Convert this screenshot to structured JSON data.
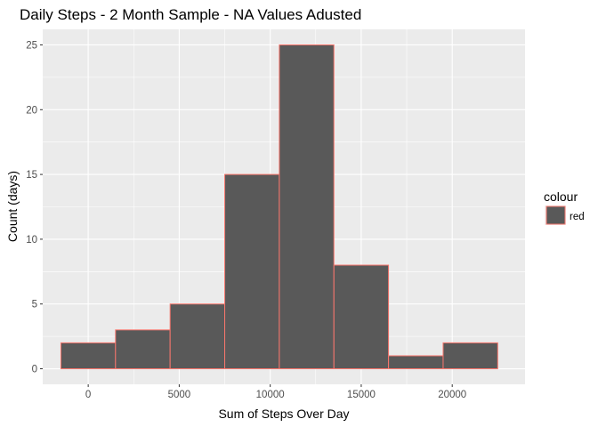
{
  "chart_data": {
    "type": "bar",
    "title": "Daily Steps - 2 Month Sample - NA Values Adusted",
    "xlabel": "Sum of Steps Over Day",
    "ylabel": "Count (days)",
    "xlim": [
      -2500,
      24000
    ],
    "ylim": [
      -1.2,
      26.2
    ],
    "xticks": [
      0,
      5000,
      10000,
      15000,
      20000
    ],
    "xtick_labels": [
      "0",
      "5000",
      "10000",
      "15000",
      "20000"
    ],
    "yticks": [
      0,
      5,
      10,
      15,
      20,
      25
    ],
    "ytick_labels": [
      "0",
      "5",
      "10",
      "15",
      "20",
      "25"
    ],
    "bins": [
      {
        "x_start": -1500,
        "x_end": 1500,
        "count": 2
      },
      {
        "x_start": 1500,
        "x_end": 4500,
        "count": 3
      },
      {
        "x_start": 4500,
        "x_end": 7500,
        "count": 5
      },
      {
        "x_start": 7500,
        "x_end": 10500,
        "count": 15
      },
      {
        "x_start": 10500,
        "x_end": 13500,
        "count": 25
      },
      {
        "x_start": 13500,
        "x_end": 16500,
        "count": 8
      },
      {
        "x_start": 16500,
        "x_end": 19500,
        "count": 1
      },
      {
        "x_start": 19500,
        "x_end": 22500,
        "count": 2
      }
    ],
    "bar_fill": "#595959",
    "bar_outline": "#f8766d",
    "panel_background": "#ebebeb",
    "gridline_color": "#ffffff",
    "grid": true,
    "legend": {
      "title": "colour",
      "entries": [
        "red"
      ],
      "placement": "right"
    }
  }
}
